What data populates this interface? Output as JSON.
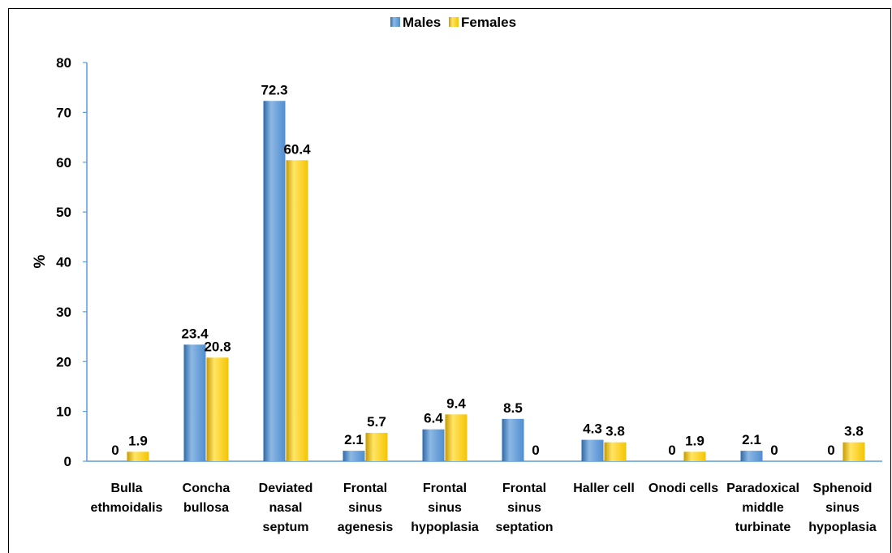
{
  "chart_data": {
    "type": "bar",
    "ylabel": "%",
    "xlabel": "",
    "ylim": [
      0,
      80
    ],
    "yticks": [
      0,
      10,
      20,
      30,
      40,
      50,
      60,
      70,
      80
    ],
    "legend_position": "top-center",
    "grid": false,
    "categories": [
      [
        "Bulla",
        "ethmoidalis"
      ],
      [
        "Concha",
        "bullosa"
      ],
      [
        "Deviated",
        "nasal",
        "septum"
      ],
      [
        "Frontal",
        "sinus",
        "agenesis"
      ],
      [
        "Frontal",
        "sinus",
        "hypoplasia"
      ],
      [
        "Frontal",
        "sinus",
        "septation"
      ],
      [
        "Haller cell"
      ],
      [
        "Onodi cells"
      ],
      [
        "Paradoxical",
        "middle",
        "turbinate"
      ],
      [
        "Sphenoid",
        "sinus",
        "hypoplasia"
      ]
    ],
    "series": [
      {
        "name": "Males",
        "color": "#4F8ED0",
        "colorLight": "#8DB8E4",
        "colorDark": "#2E6AA8",
        "values": [
          0,
          23.4,
          72.3,
          2.1,
          6.4,
          8.5,
          4.3,
          0,
          2.1,
          0
        ],
        "labels": [
          "0",
          "23.4",
          "72.3",
          "2.1",
          "6.4",
          "8.5",
          "4.3",
          "0",
          "2.1",
          "0"
        ]
      },
      {
        "name": "Females",
        "color": "#F5C400",
        "colorLight": "#FFE566",
        "colorDark": "#C99A00",
        "values": [
          1.9,
          20.8,
          60.4,
          5.7,
          9.4,
          0,
          3.8,
          1.9,
          0,
          3.8
        ],
        "labels": [
          "1.9",
          "20.8",
          "60.4",
          "5.7",
          "9.4",
          "0",
          "3.8",
          "1.9",
          "0",
          "3.8"
        ]
      }
    ]
  }
}
